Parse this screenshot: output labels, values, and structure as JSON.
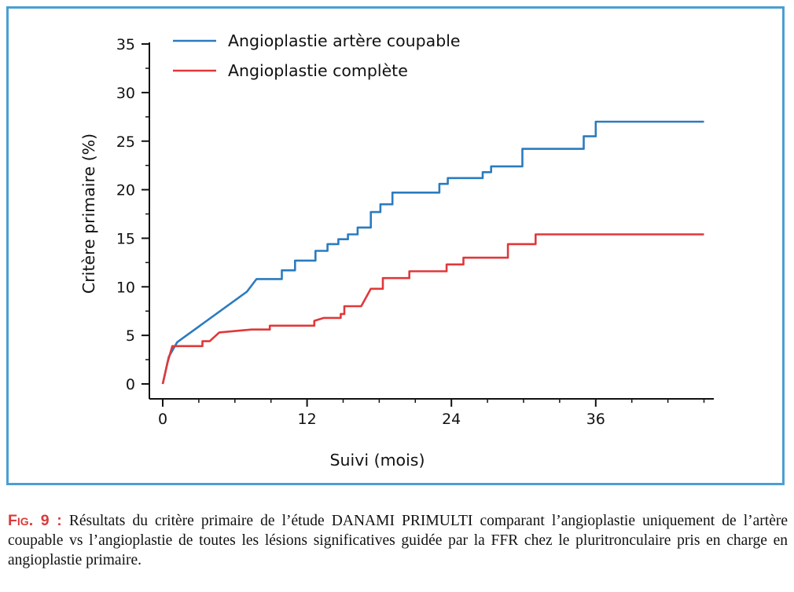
{
  "chart_data": {
    "type": "line",
    "xlabel": "Suivi (mois)",
    "ylabel": "Critère primaire (%)",
    "xlim": [
      0,
      46
    ],
    "ylim": [
      0,
      35
    ],
    "xticks": [
      0,
      12,
      24,
      36
    ],
    "yticks": [
      0,
      5,
      10,
      15,
      20,
      25,
      30,
      35
    ],
    "xtick_labels": [
      "0",
      "12",
      "24",
      "36"
    ],
    "ytick_labels": [
      "0",
      "5",
      "10",
      "15",
      "20",
      "25",
      "30",
      "35"
    ],
    "grid": false,
    "legend_position": "top-left",
    "series": [
      {
        "name": "Angioplastie artère coupable",
        "color": "#2b7bbf",
        "points": [
          [
            0,
            0
          ],
          [
            0.5,
            2.8
          ],
          [
            1.2,
            4.3
          ],
          [
            7.0,
            9.5
          ],
          [
            7.8,
            10.8
          ],
          [
            9.9,
            10.8
          ],
          [
            9.9,
            11.7
          ],
          [
            11.0,
            11.7
          ],
          [
            11.0,
            12.7
          ],
          [
            12.7,
            12.7
          ],
          [
            12.7,
            13.7
          ],
          [
            13.7,
            13.7
          ],
          [
            13.7,
            14.4
          ],
          [
            14.6,
            14.4
          ],
          [
            14.6,
            14.9
          ],
          [
            15.4,
            14.9
          ],
          [
            15.4,
            15.4
          ],
          [
            16.2,
            15.4
          ],
          [
            16.2,
            16.1
          ],
          [
            17.3,
            16.1
          ],
          [
            17.3,
            17.7
          ],
          [
            18.1,
            17.7
          ],
          [
            18.1,
            18.5
          ],
          [
            19.1,
            18.5
          ],
          [
            19.1,
            19.7
          ],
          [
            23.0,
            19.7
          ],
          [
            23.0,
            20.6
          ],
          [
            23.7,
            20.6
          ],
          [
            23.7,
            21.2
          ],
          [
            26.6,
            21.2
          ],
          [
            26.6,
            21.8
          ],
          [
            27.3,
            21.8
          ],
          [
            27.3,
            22.4
          ],
          [
            29.9,
            22.4
          ],
          [
            29.9,
            24.2
          ],
          [
            35.0,
            24.2
          ],
          [
            35.0,
            25.5
          ],
          [
            36.0,
            25.5
          ],
          [
            36.0,
            27.0
          ],
          [
            45.0,
            27.0
          ]
        ]
      },
      {
        "name": "Angioplastie complète",
        "color": "#e0383a",
        "points": [
          [
            0,
            0
          ],
          [
            0.4,
            2.2
          ],
          [
            0.8,
            3.9
          ],
          [
            3.3,
            3.9
          ],
          [
            3.3,
            4.4
          ],
          [
            3.9,
            4.4
          ],
          [
            4.7,
            5.3
          ],
          [
            7.4,
            5.6
          ],
          [
            8.9,
            5.6
          ],
          [
            8.9,
            6.0
          ],
          [
            12.6,
            6.0
          ],
          [
            12.6,
            6.5
          ],
          [
            13.4,
            6.8
          ],
          [
            14.8,
            6.8
          ],
          [
            14.8,
            7.2
          ],
          [
            15.1,
            7.2
          ],
          [
            15.1,
            8.0
          ],
          [
            16.5,
            8.0
          ],
          [
            17.3,
            9.8
          ],
          [
            18.3,
            9.8
          ],
          [
            18.3,
            10.9
          ],
          [
            20.5,
            10.9
          ],
          [
            20.5,
            11.6
          ],
          [
            23.6,
            11.6
          ],
          [
            23.6,
            12.3
          ],
          [
            25.0,
            12.3
          ],
          [
            25.0,
            13.0
          ],
          [
            28.7,
            13.0
          ],
          [
            28.7,
            14.4
          ],
          [
            31.0,
            14.4
          ],
          [
            31.0,
            15.4
          ],
          [
            45.0,
            15.4
          ]
        ]
      }
    ]
  },
  "caption": {
    "label_prefix": "F",
    "label_rest": "ig. 9 :",
    "text": " Résultats du critère primaire de l’étude DANAMI PRIMULTI comparant l’angioplastie uniquement de l’artère coupable vs l’angioplastie de toutes les lésions significatives guidée par la FFR chez le pluritronculaire pris en charge en angioplastie primaire."
  },
  "colors": {
    "frame": "#4a9fd4",
    "caption_label": "#d83b3b"
  }
}
